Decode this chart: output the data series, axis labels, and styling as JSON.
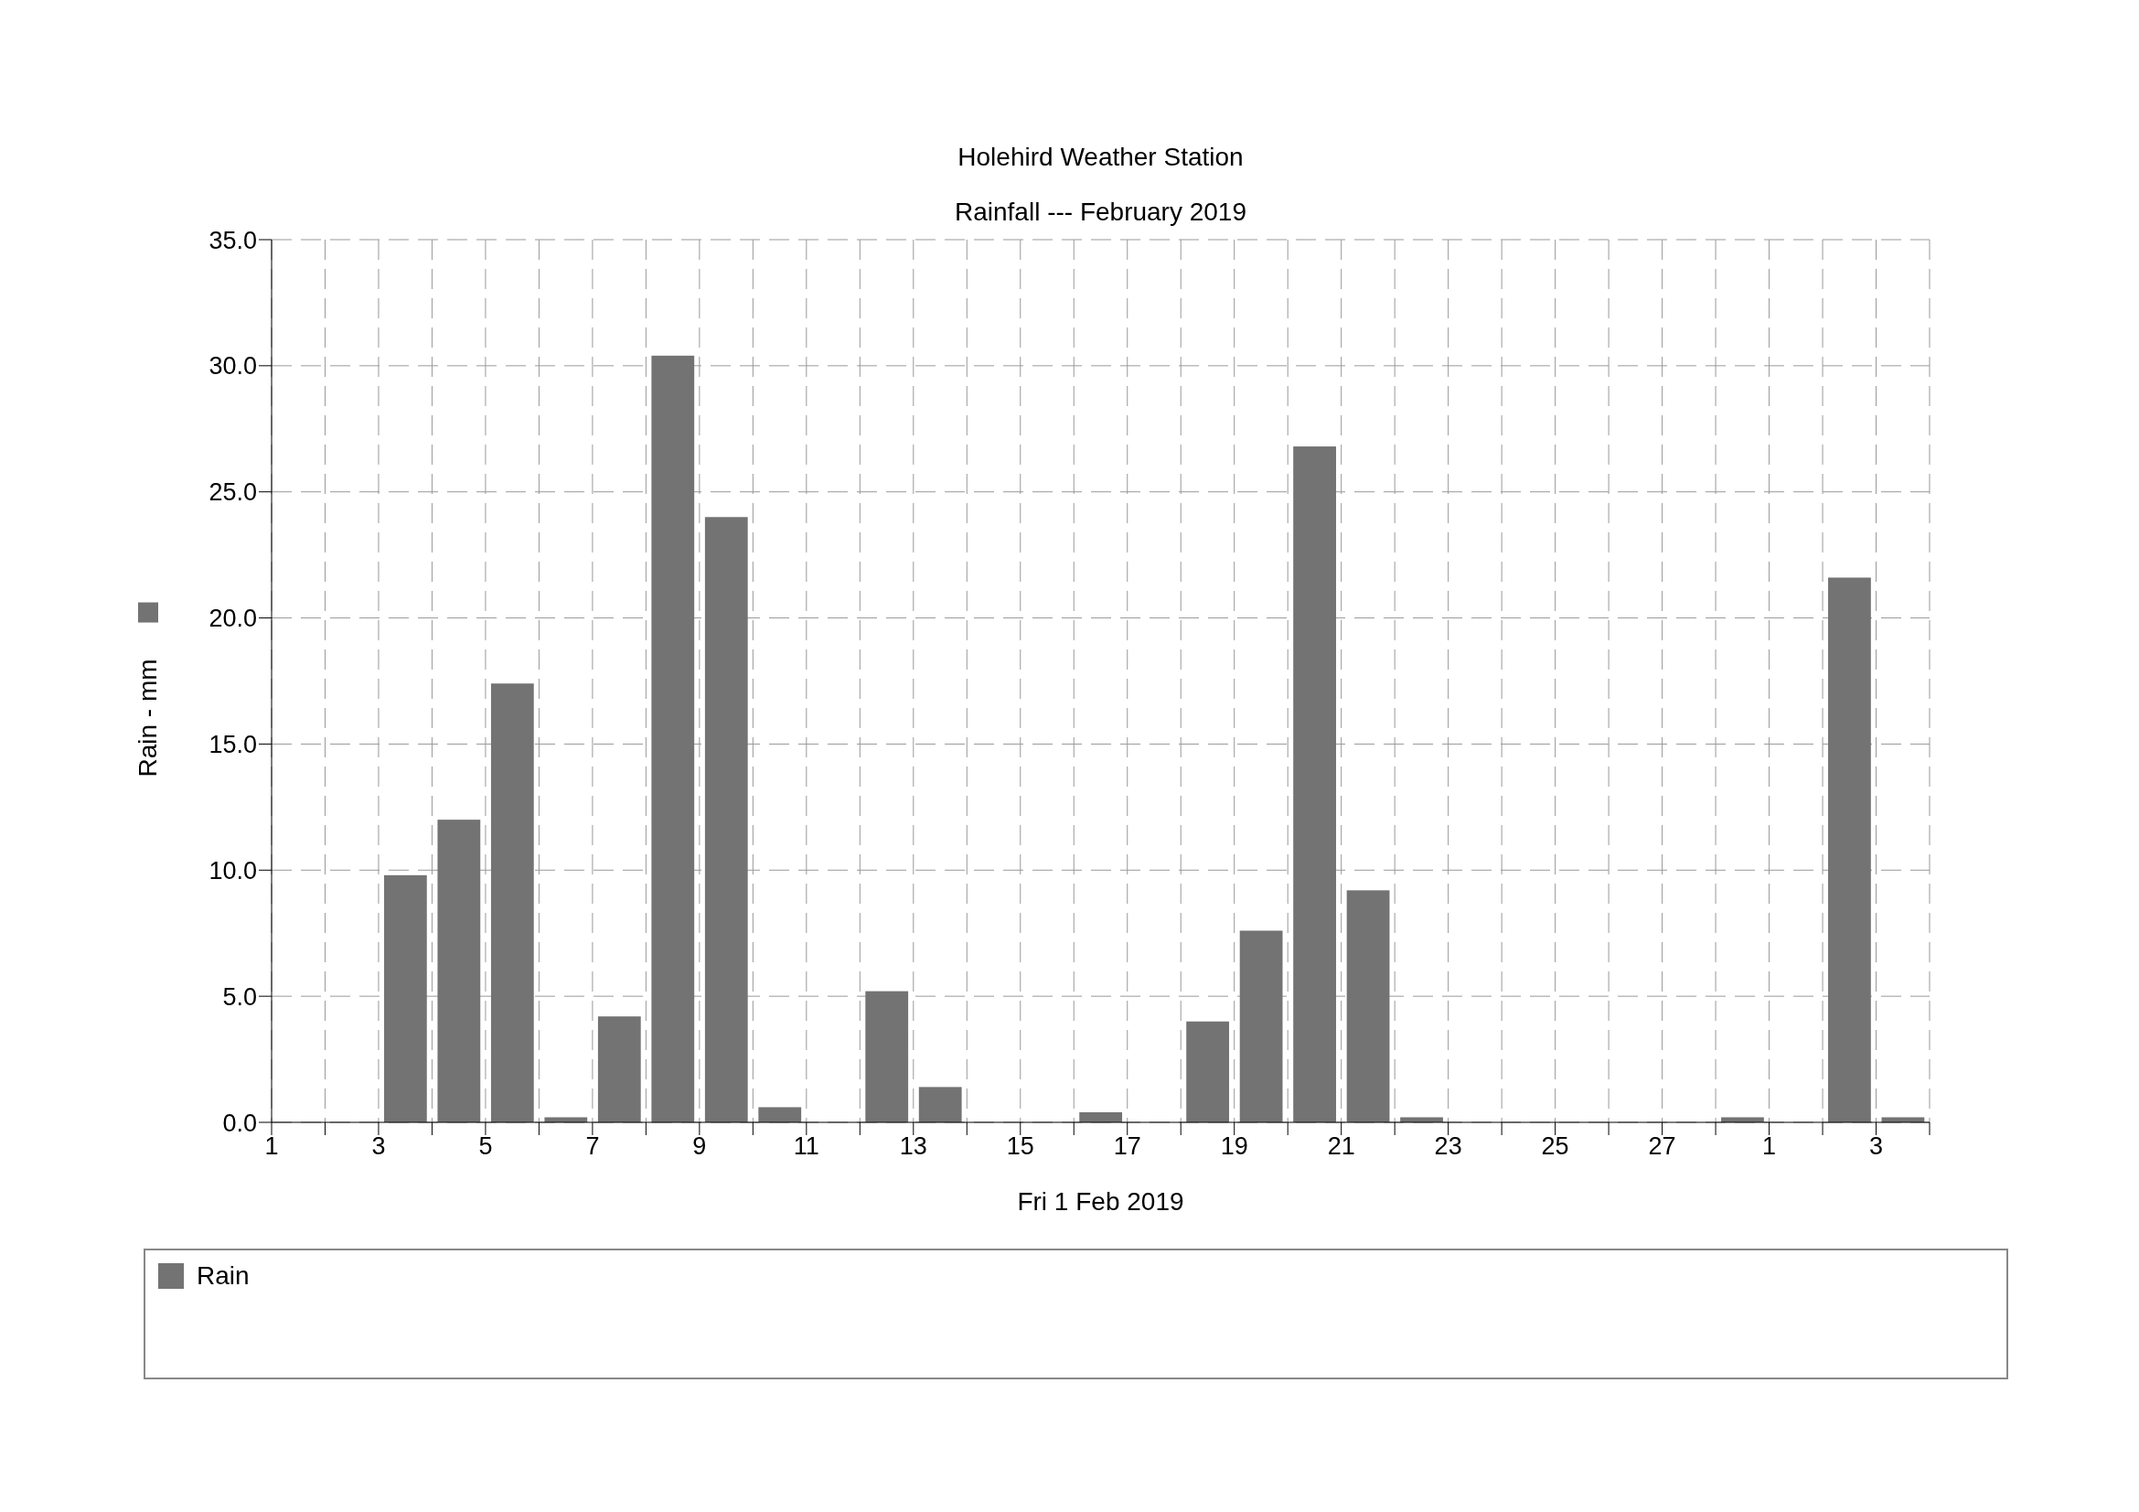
{
  "chart_data": {
    "type": "bar",
    "title": "Holehird Weather Station",
    "subtitle": "Rainfall --- February 2019",
    "xlabel": "Fri 1 Feb 2019",
    "ylabel": "Rain - mm",
    "x": [
      "2019-02-01T12:00",
      "2019-02-02T12:00",
      "2019-02-03T12:00",
      "2019-02-04T12:00",
      "2019-02-05T12:00",
      "2019-02-06T12:00",
      "2019-02-07T12:00",
      "2019-02-08T12:00",
      "2019-02-09T12:00",
      "2019-02-10T12:00",
      "2019-02-11T12:00",
      "2019-02-12T12:00",
      "2019-02-13T12:00",
      "2019-02-14T12:00",
      "2019-02-15T12:00",
      "2019-02-16T12:00",
      "2019-02-17T12:00",
      "2019-02-18T12:00",
      "2019-02-19T12:00",
      "2019-02-20T12:00",
      "2019-02-21T12:00",
      "2019-02-22T12:00",
      "2019-02-23T12:00",
      "2019-02-24T12:00",
      "2019-02-25T12:00",
      "2019-02-26T12:00",
      "2019-02-27T12:00",
      "2019-02-28T12:00",
      "2019-03-01T12:00",
      "2019-03-02T12:00",
      "2019-03-03T12:00"
    ],
    "series": [
      {
        "name": "Rain",
        "color": "#737373",
        "values": [
          0,
          0,
          9.8,
          12.0,
          17.4,
          0.2,
          4.2,
          30.4,
          24.0,
          0.6,
          0,
          5.2,
          1.4,
          0,
          0,
          0.4,
          0,
          4.0,
          7.6,
          26.8,
          9.2,
          0.2,
          0,
          0,
          0,
          0,
          0,
          0.2,
          0,
          21.6,
          0.2
        ]
      }
    ],
    "xlim": [
      "2019-02-01",
      "2019-03-04"
    ],
    "xticks": [
      {
        "value": "2019-02-01",
        "label": "1"
      },
      {
        "value": "2019-02-02",
        "label": null
      },
      {
        "value": "2019-02-03",
        "label": "3"
      },
      {
        "value": "2019-02-04",
        "label": null
      },
      {
        "value": "2019-02-05",
        "label": "5"
      },
      {
        "value": "2019-02-06",
        "label": null
      },
      {
        "value": "2019-02-07",
        "label": "7"
      },
      {
        "value": "2019-02-08",
        "label": null
      },
      {
        "value": "2019-02-09",
        "label": "9"
      },
      {
        "value": "2019-02-10",
        "label": null
      },
      {
        "value": "2019-02-11",
        "label": "11"
      },
      {
        "value": "2019-02-12",
        "label": null
      },
      {
        "value": "2019-02-13",
        "label": "13"
      },
      {
        "value": "2019-02-14",
        "label": null
      },
      {
        "value": "2019-02-15",
        "label": "15"
      },
      {
        "value": "2019-02-16",
        "label": null
      },
      {
        "value": "2019-02-17",
        "label": "17"
      },
      {
        "value": "2019-02-18",
        "label": null
      },
      {
        "value": "2019-02-19",
        "label": "19"
      },
      {
        "value": "2019-02-20",
        "label": null
      },
      {
        "value": "2019-02-21",
        "label": "21"
      },
      {
        "value": "2019-02-22",
        "label": null
      },
      {
        "value": "2019-02-23",
        "label": "23"
      },
      {
        "value": "2019-02-24",
        "label": null
      },
      {
        "value": "2019-02-25",
        "label": "25"
      },
      {
        "value": "2019-02-26",
        "label": null
      },
      {
        "value": "2019-02-27",
        "label": "27"
      },
      {
        "value": "2019-02-28",
        "label": null
      },
      {
        "value": "2019-03-01",
        "label": "1"
      },
      {
        "value": "2019-03-02",
        "label": null
      },
      {
        "value": "2019-03-03",
        "label": "3"
      },
      {
        "value": "2019-03-04",
        "label": null
      }
    ],
    "ylim": [
      0,
      35
    ],
    "yticks": [
      {
        "value": 0,
        "label": "0.0"
      },
      {
        "value": 5,
        "label": "5.0"
      },
      {
        "value": 10,
        "label": "10.0"
      },
      {
        "value": 15,
        "label": "15.0"
      },
      {
        "value": 20,
        "label": "20.0"
      },
      {
        "value": 25,
        "label": "25.0"
      },
      {
        "value": 30,
        "label": "30.0"
      },
      {
        "value": 35,
        "label": "35.0"
      }
    ],
    "grid": true,
    "legend": "bottom"
  }
}
